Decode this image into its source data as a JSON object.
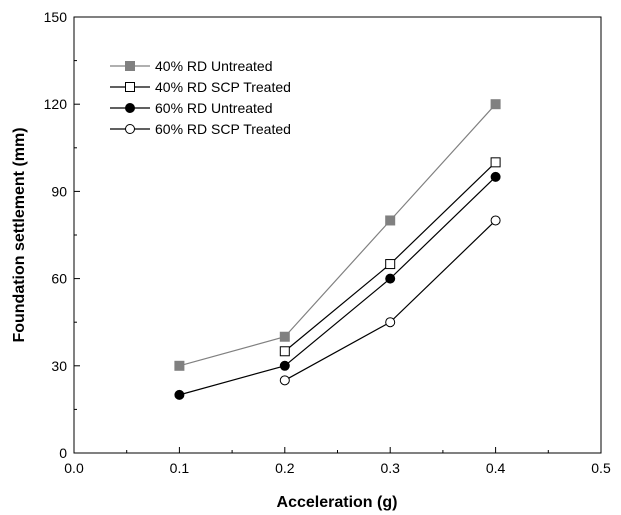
{
  "chart_data": {
    "type": "line",
    "xlabel": "Acceleration (g)",
    "ylabel": "Foundation settlement (mm)",
    "xlim": [
      0.0,
      0.5
    ],
    "ylim": [
      0,
      150
    ],
    "xticks": [
      0.0,
      0.1,
      0.2,
      0.3,
      0.4,
      0.5
    ],
    "xtick_labels": [
      "0.0",
      "0.1",
      "0.2",
      "0.3",
      "0.4",
      "0.5"
    ],
    "yticks": [
      0,
      30,
      60,
      90,
      120,
      150
    ],
    "ytick_labels": [
      "0",
      "30",
      "60",
      "90",
      "120",
      "150"
    ],
    "grid": false,
    "legend_position": "top-left",
    "series": [
      {
        "name": "40% RD Untreated",
        "x": [
          0.1,
          0.2,
          0.3,
          0.4
        ],
        "y": [
          30,
          40,
          80,
          120
        ],
        "marker": "square-filled",
        "color": "#808080"
      },
      {
        "name": "40% RD SCP Treated",
        "x": [
          0.2,
          0.3,
          0.4
        ],
        "y": [
          35,
          65,
          100
        ],
        "marker": "square-open",
        "color": "#000000"
      },
      {
        "name": "60% RD Untreated",
        "x": [
          0.1,
          0.2,
          0.3,
          0.4
        ],
        "y": [
          20,
          30,
          60,
          95
        ],
        "marker": "circle-filled",
        "color": "#000000"
      },
      {
        "name": "60% RD SCP Treated",
        "x": [
          0.2,
          0.3,
          0.4
        ],
        "y": [
          25,
          45,
          80
        ],
        "marker": "circle-open",
        "color": "#000000"
      }
    ]
  }
}
